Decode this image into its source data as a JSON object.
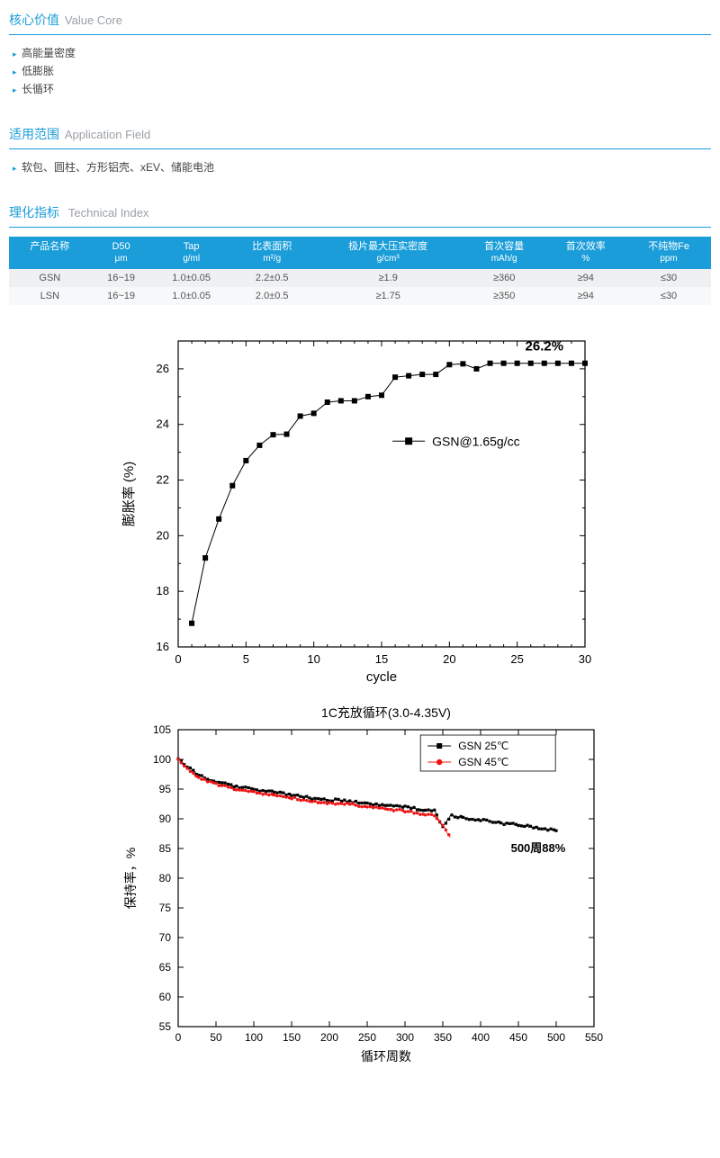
{
  "sections": {
    "value_core": {
      "zh": "核心价值",
      "en": "Value Core",
      "items": [
        "高能量密度",
        "低膨胀",
        "长循环"
      ]
    },
    "application": {
      "zh": "适用范围",
      "en": "Application Field",
      "items": [
        "软包、圆柱、方形铝壳、xEV、储能电池"
      ]
    },
    "tech_index": {
      "zh": "理化指标",
      "en": "Technical Index"
    }
  },
  "table": {
    "columns": [
      {
        "label": "产品名称",
        "unit": ""
      },
      {
        "label": "D50",
        "unit": "μm"
      },
      {
        "label": "Tap",
        "unit": "g/ml"
      },
      {
        "label": "比表面积",
        "unit": "m²/g"
      },
      {
        "label": "极片最大压实密度",
        "unit": "g/cm³"
      },
      {
        "label": "首次容量",
        "unit": "mAh/g"
      },
      {
        "label": "首次效率",
        "unit": "%"
      },
      {
        "label": "不纯物Fe",
        "unit": "ppm"
      }
    ],
    "rows": [
      [
        "GSN",
        "16~19",
        "1.0±0.05",
        "2.2±0.5",
        "≥1.9",
        "≥360",
        "≥94",
        "≤30"
      ],
      [
        "LSN",
        "16~19",
        "1.0±0.05",
        "2.0±0.5",
        "≥1.75",
        "≥350",
        "≥94",
        "≤30"
      ]
    ],
    "header_bg": "#1b9dd9",
    "header_color": "#ffffff",
    "row_bg_odd": "#eef0f2",
    "row_bg_even": "#f7f8f9"
  },
  "chart1": {
    "type": "line-scatter",
    "xlabel": "cycle",
    "ylabel": "膨胀率 (%)",
    "xlim": [
      0,
      30
    ],
    "xtick_step": 5,
    "ylim": [
      16,
      27
    ],
    "ytick_step": 2,
    "annotation": "26.2%",
    "legend": "GSN@1.65g/cc",
    "marker": "square",
    "marker_color": "#000000",
    "line_color": "#000000",
    "axis_color": "#000000",
    "label_fontsize": 14,
    "background": "#ffffff",
    "x": [
      1,
      2,
      3,
      4,
      5,
      6,
      7,
      8,
      9,
      10,
      11,
      12,
      13,
      14,
      15,
      16,
      17,
      18,
      19,
      20,
      21,
      22,
      23,
      24,
      25,
      26,
      27,
      28,
      29,
      30
    ],
    "y": [
      16.85,
      19.2,
      20.6,
      21.8,
      22.7,
      23.25,
      23.63,
      23.65,
      24.3,
      24.4,
      24.8,
      24.85,
      24.85,
      25.0,
      25.05,
      25.7,
      25.75,
      25.8,
      25.8,
      26.15,
      26.18,
      26.0,
      26.2,
      26.2,
      26.2,
      26.2,
      26.2,
      26.2,
      26.2,
      26.2
    ]
  },
  "chart2": {
    "type": "line-scatter",
    "title": "1C充放循环(3.0-4.35V)",
    "xlabel": "循环周数",
    "ylabel": "保持率，%",
    "xlim": [
      0,
      550
    ],
    "xtick_step": 50,
    "ylim": [
      55,
      105
    ],
    "ytick_step": 5,
    "annotation": "500周88%",
    "axis_color": "#000000",
    "label_fontsize": 14,
    "background": "#ffffff",
    "series": [
      {
        "name": "GSN 25℃",
        "marker": "square",
        "color": "#000000",
        "x": [
          0,
          25,
          50,
          75,
          100,
          125,
          150,
          175,
          200,
          225,
          250,
          275,
          300,
          325,
          340,
          350,
          360,
          375,
          400,
          425,
          450,
          475,
          500
        ],
        "y": [
          100,
          97.5,
          96.2,
          95.5,
          95.0,
          94.5,
          94.0,
          93.5,
          93.2,
          93.0,
          92.5,
          92.2,
          92.0,
          91.5,
          91.3,
          88.5,
          90.5,
          90.2,
          89.8,
          89.3,
          89.0,
          88.5,
          88.0
        ]
      },
      {
        "name": "GSN 45℃",
        "marker": "circle",
        "color": "#ee1111",
        "x": [
          0,
          25,
          50,
          75,
          100,
          125,
          150,
          175,
          200,
          225,
          250,
          275,
          300,
          325,
          340,
          350,
          360
        ],
        "y": [
          100,
          97.0,
          95.8,
          95.0,
          94.5,
          94.0,
          93.5,
          93.0,
          92.7,
          92.5,
          92.0,
          91.7,
          91.3,
          90.8,
          90.5,
          89.0,
          86.8
        ]
      }
    ]
  }
}
